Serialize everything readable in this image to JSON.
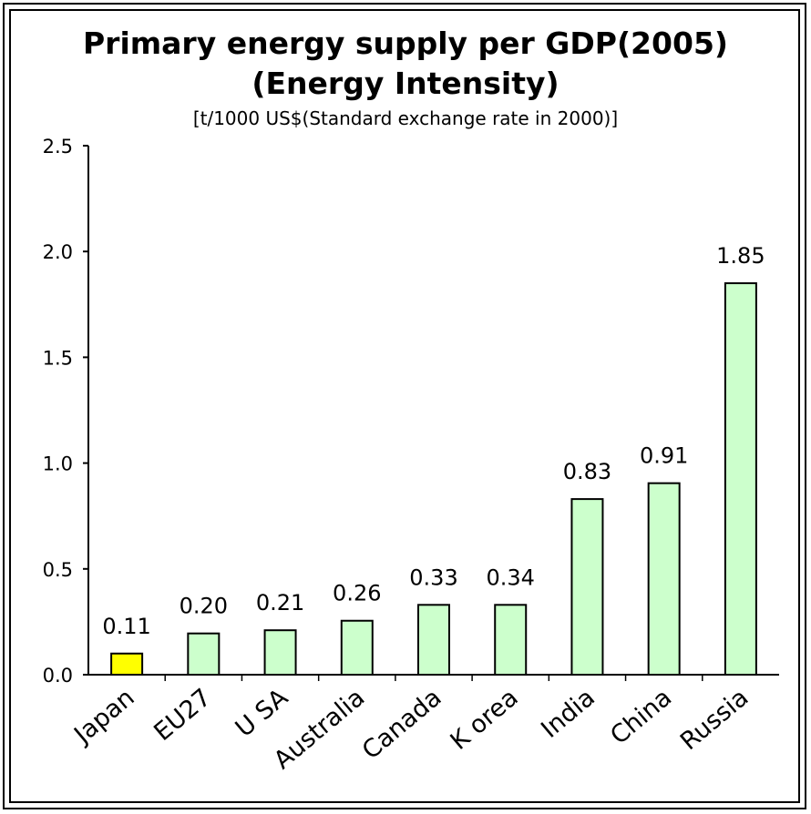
{
  "chart_data": {
    "type": "bar",
    "title": "Primary energy supply per GDP(2005)",
    "title_line2": "(Energy Intensity)",
    "subtitle": "[t/1000 US$(Standard exchange rate in 2000)]",
    "categories": [
      "Japan",
      "EU27",
      "U SA",
      "Australia",
      "Canada",
      "K orea",
      "India",
      "China",
      "Russia"
    ],
    "values": [
      0.11,
      0.2,
      0.21,
      0.26,
      0.33,
      0.34,
      0.83,
      0.91,
      1.85
    ],
    "value_labels": [
      "0.11",
      "0.20",
      "0.21",
      "0.26",
      "0.33",
      "0.34",
      "0.83",
      "0.91",
      "1.85"
    ],
    "bar_heights": [
      0.1,
      0.195,
      0.21,
      0.255,
      0.33,
      0.33,
      0.83,
      0.905,
      1.85
    ],
    "ylim": [
      0,
      2.5
    ],
    "yticks": [
      "0.0",
      "0.5",
      "1.0",
      "1.5",
      "2.0",
      "2.5"
    ],
    "ytick_values": [
      0,
      0.5,
      1.0,
      1.5,
      2.0,
      2.5
    ],
    "xlabel": "",
    "ylabel": "",
    "grid": false,
    "highlight_index": 0,
    "colors": {
      "highlight": "#ffff00",
      "bar": "#ccffcc",
      "stroke": "#000000"
    }
  }
}
